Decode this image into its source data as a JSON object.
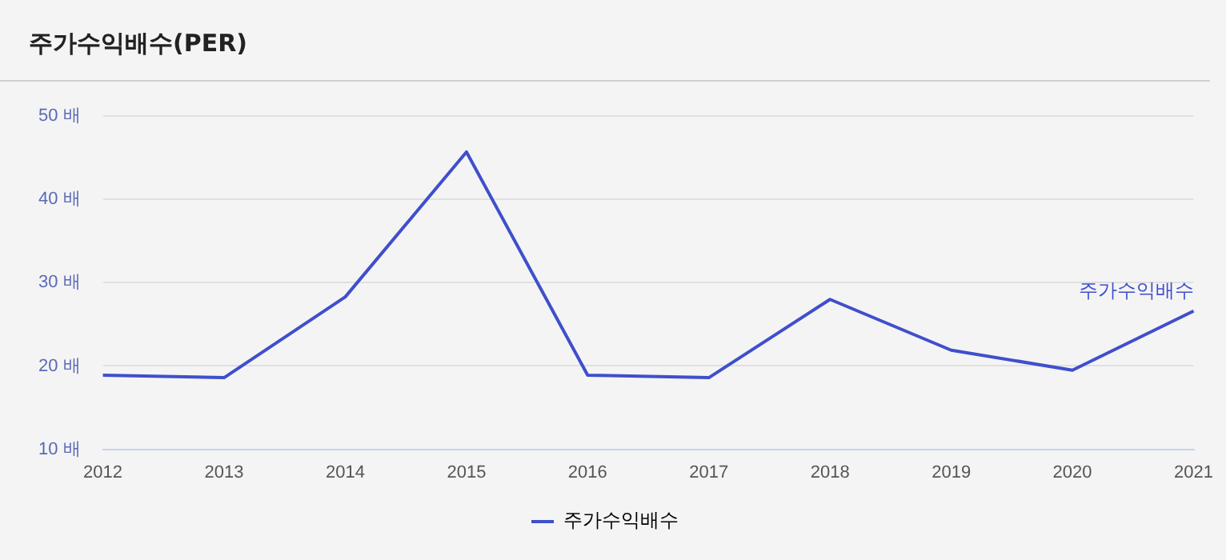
{
  "chart_data": {
    "type": "line",
    "title": "주가수익배수(PER)",
    "categories": [
      "2012",
      "2013",
      "2014",
      "2015",
      "2016",
      "2017",
      "2018",
      "2019",
      "2020",
      "2021"
    ],
    "series": [
      {
        "name": "주가수익배수",
        "color": "#3f4fcc",
        "values": [
          18.9,
          18.6,
          28.3,
          45.7,
          18.9,
          18.6,
          28.0,
          21.9,
          19.5,
          26.6
        ]
      }
    ],
    "ylim": [
      10,
      50
    ],
    "yticks": [
      {
        "value": 10,
        "label": "10 배"
      },
      {
        "value": 20,
        "label": "20 배"
      },
      {
        "value": 30,
        "label": "30 배"
      },
      {
        "value": 40,
        "label": "40 배"
      },
      {
        "value": 50,
        "label": "50 배"
      }
    ],
    "grid": "y",
    "legend": "bottom",
    "marker": "none",
    "line_style": "solid"
  }
}
